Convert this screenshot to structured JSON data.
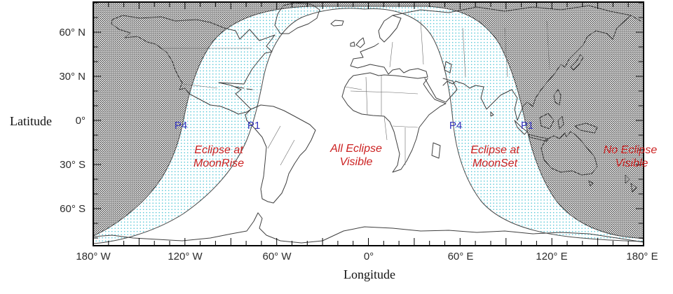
{
  "map": {
    "axes": {
      "x_title": "Longitude",
      "y_title": "Latitude",
      "x_ticks": [
        "180° W",
        "120° W",
        "60° W",
        "0°",
        "60° E",
        "120° E",
        "180° E"
      ],
      "y_ticks": [
        "60° N",
        "30° N",
        "0°",
        "30° S",
        "60° S"
      ]
    },
    "regions": {
      "moonrise": {
        "line1": "Eclipse at",
        "line2": "MoonRise"
      },
      "all_visible": {
        "line1": "All Eclipse",
        "line2": "Visible"
      },
      "moonset": {
        "line1": "Eclipse at",
        "line2": "MoonSet"
      },
      "no_eclipse": {
        "line1": "No Eclipse",
        "line2": "Visible"
      }
    },
    "contacts": {
      "p4_west": "P4",
      "p1_west": "P1",
      "p4_east": "P4",
      "p1_east": "P1"
    },
    "colors": {
      "region_label": "#cc2222",
      "contact_label": "#3333bb",
      "land_outline": "#3f3f3f",
      "dark_dot": "#111111",
      "blue_dot": "#53c6d6",
      "frame": "#000000"
    }
  }
}
